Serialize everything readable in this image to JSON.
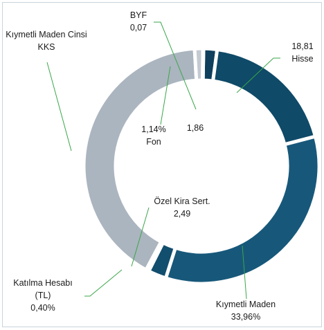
{
  "chart_data": {
    "type": "donut",
    "categories": [
      null,
      "Hisse",
      "Kıymetli Maden",
      "Özel Kira Sert.",
      "Katılma Hesabı (TL)",
      "Kıymetli Maden Cinsi KKS",
      "Fon",
      "BYF"
    ],
    "values": [
      1.86,
      18.81,
      33.96,
      2.49,
      0.4,
      41.27,
      1.14,
      0.07
    ],
    "value_labels": [
      "1,86",
      "18,81",
      "33,96%",
      "2,49",
      "0,40%",
      null,
      "1,14%",
      "0,07"
    ],
    "colors": [
      "#0e3f5c",
      "#0f4a68",
      "#17587a",
      "#124e6e",
      "#9aa6b1",
      "#abb5bf",
      "#c3cad1",
      "#8a96a2"
    ]
  }
}
